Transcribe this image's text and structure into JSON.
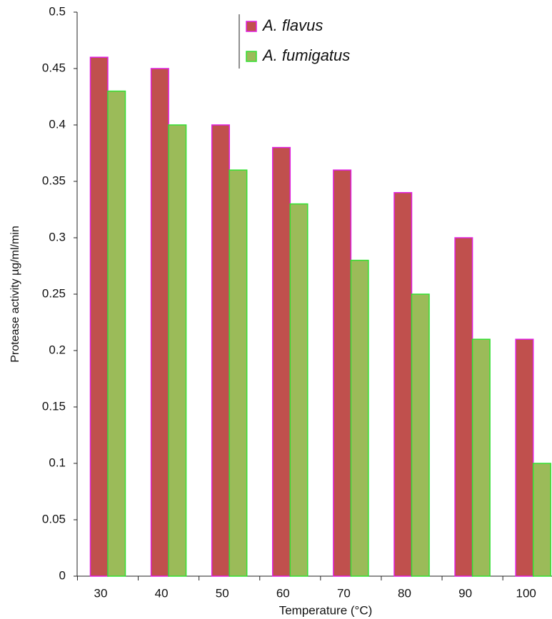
{
  "chart_data": {
    "type": "bar",
    "categories": [
      "30",
      "40",
      "50",
      "60",
      "70",
      "80",
      "90",
      "100"
    ],
    "series": [
      {
        "name": "A. flavus",
        "color": "#c0504d",
        "stroke": "#e020e0",
        "values": [
          0.46,
          0.45,
          0.4,
          0.38,
          0.36,
          0.34,
          0.3,
          0.21
        ]
      },
      {
        "name": "A. fumigatus",
        "color": "#9bbb59",
        "stroke": "#33e033",
        "values": [
          0.43,
          0.4,
          0.36,
          0.33,
          0.28,
          0.25,
          0.21,
          0.1
        ]
      }
    ],
    "x_label": "Temperature (°C)",
    "y_label": "Protease activity µg/ml/min",
    "ylim": [
      0,
      0.5
    ],
    "yticks": [
      0,
      0.05,
      0.1,
      0.15,
      0.2,
      0.25,
      0.3,
      0.35,
      0.4,
      0.45,
      0.5
    ]
  }
}
